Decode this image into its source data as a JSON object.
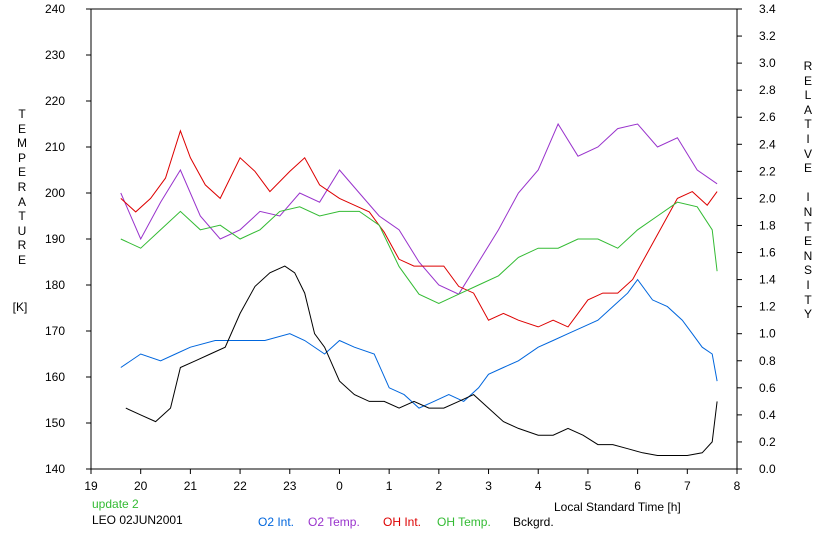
{
  "chart_data": {
    "type": "line",
    "ylabel_left": "TEMPERATURE",
    "ylabel_left_unit": "[K]",
    "ylabel_right": "RELATIVE INTENSITY",
    "xlabel": "Local Standard Time [h]",
    "xlim": [
      19,
      8
    ],
    "ylim_left": [
      140,
      240
    ],
    "ylim_right": [
      0.0,
      3.4
    ],
    "x_ticks": [
      "19",
      "20",
      "21",
      "22",
      "23",
      "0",
      "1",
      "2",
      "3",
      "4",
      "5",
      "6",
      "7",
      "8"
    ],
    "y_ticks_left": [
      "240",
      "230",
      "220",
      "210",
      "200",
      "190",
      "180",
      "170",
      "160",
      "150",
      "140"
    ],
    "y_ticks_right": [
      "3.4",
      "3.2",
      "3.0",
      "2.8",
      "2.6",
      "2.4",
      "2.2",
      "2.0",
      "1.8",
      "1.6",
      "1.4",
      "1.2",
      "1.0",
      "0.8",
      "0.6",
      "0.4",
      "0.2",
      "0.0"
    ],
    "grid": false,
    "legend_position": "bottom",
    "series": [
      {
        "name": "O2 Int.",
        "color": "#0066dd",
        "axis": "right",
        "points": [
          [
            19.6,
            0.75
          ],
          [
            20.0,
            0.85
          ],
          [
            20.4,
            0.8
          ],
          [
            20.7,
            0.85
          ],
          [
            21.0,
            0.9
          ],
          [
            21.5,
            0.95
          ],
          [
            22.0,
            0.95
          ],
          [
            22.5,
            0.95
          ],
          [
            23.0,
            1.0
          ],
          [
            23.3,
            0.95
          ],
          [
            23.7,
            0.85
          ],
          [
            0.0,
            0.95
          ],
          [
            0.3,
            0.9
          ],
          [
            0.7,
            0.85
          ],
          [
            1.0,
            0.6
          ],
          [
            1.3,
            0.55
          ],
          [
            1.6,
            0.45
          ],
          [
            1.9,
            0.5
          ],
          [
            2.2,
            0.55
          ],
          [
            2.5,
            0.5
          ],
          [
            2.8,
            0.6
          ],
          [
            3.0,
            0.7
          ],
          [
            3.3,
            0.75
          ],
          [
            3.6,
            0.8
          ],
          [
            4.0,
            0.9
          ],
          [
            4.3,
            0.95
          ],
          [
            4.6,
            1.0
          ],
          [
            4.9,
            1.05
          ],
          [
            5.2,
            1.1
          ],
          [
            5.5,
            1.2
          ],
          [
            5.8,
            1.3
          ],
          [
            6.0,
            1.4
          ],
          [
            6.3,
            1.25
          ],
          [
            6.6,
            1.2
          ],
          [
            6.9,
            1.1
          ],
          [
            7.1,
            1.0
          ],
          [
            7.3,
            0.9
          ],
          [
            7.5,
            0.85
          ],
          [
            7.6,
            0.65
          ]
        ]
      },
      {
        "name": "O2 Temp.",
        "color": "#9933cc",
        "axis": "left",
        "points": [
          [
            19.6,
            200
          ],
          [
            20.0,
            190
          ],
          [
            20.4,
            198
          ],
          [
            20.8,
            205
          ],
          [
            21.2,
            195
          ],
          [
            21.6,
            190
          ],
          [
            22.0,
            192
          ],
          [
            22.4,
            196
          ],
          [
            22.8,
            195
          ],
          [
            23.2,
            200
          ],
          [
            23.6,
            198
          ],
          [
            0.0,
            205
          ],
          [
            0.4,
            200
          ],
          [
            0.8,
            195
          ],
          [
            1.2,
            192
          ],
          [
            1.6,
            185
          ],
          [
            2.0,
            180
          ],
          [
            2.4,
            178
          ],
          [
            2.8,
            185
          ],
          [
            3.2,
            192
          ],
          [
            3.6,
            200
          ],
          [
            4.0,
            205
          ],
          [
            4.4,
            215
          ],
          [
            4.8,
            208
          ],
          [
            5.2,
            210
          ],
          [
            5.6,
            214
          ],
          [
            6.0,
            215
          ],
          [
            6.4,
            210
          ],
          [
            6.8,
            212
          ],
          [
            7.2,
            205
          ],
          [
            7.6,
            202
          ]
        ]
      },
      {
        "name": "OH Int.",
        "color": "#dd0000",
        "axis": "right",
        "points": [
          [
            19.6,
            2.0
          ],
          [
            19.9,
            1.9
          ],
          [
            20.2,
            2.0
          ],
          [
            20.5,
            2.15
          ],
          [
            20.8,
            2.5
          ],
          [
            21.0,
            2.3
          ],
          [
            21.3,
            2.1
          ],
          [
            21.6,
            2.0
          ],
          [
            22.0,
            2.3
          ],
          [
            22.3,
            2.2
          ],
          [
            22.6,
            2.05
          ],
          [
            23.0,
            2.2
          ],
          [
            23.3,
            2.3
          ],
          [
            23.6,
            2.1
          ],
          [
            0.0,
            2.0
          ],
          [
            0.3,
            1.95
          ],
          [
            0.6,
            1.9
          ],
          [
            0.9,
            1.75
          ],
          [
            1.2,
            1.55
          ],
          [
            1.5,
            1.5
          ],
          [
            1.8,
            1.5
          ],
          [
            2.1,
            1.5
          ],
          [
            2.4,
            1.35
          ],
          [
            2.7,
            1.3
          ],
          [
            3.0,
            1.1
          ],
          [
            3.3,
            1.15
          ],
          [
            3.6,
            1.1
          ],
          [
            4.0,
            1.05
          ],
          [
            4.3,
            1.1
          ],
          [
            4.6,
            1.05
          ],
          [
            4.8,
            1.15
          ],
          [
            5.0,
            1.25
          ],
          [
            5.3,
            1.3
          ],
          [
            5.6,
            1.3
          ],
          [
            5.9,
            1.4
          ],
          [
            6.2,
            1.6
          ],
          [
            6.5,
            1.8
          ],
          [
            6.8,
            2.0
          ],
          [
            7.1,
            2.05
          ],
          [
            7.4,
            1.95
          ],
          [
            7.6,
            2.05
          ]
        ]
      },
      {
        "name": "OH Temp.",
        "color": "#33bb33",
        "axis": "left",
        "points": [
          [
            19.6,
            190
          ],
          [
            20.0,
            188
          ],
          [
            20.4,
            192
          ],
          [
            20.8,
            196
          ],
          [
            21.2,
            192
          ],
          [
            21.6,
            193
          ],
          [
            22.0,
            190
          ],
          [
            22.4,
            192
          ],
          [
            22.8,
            196
          ],
          [
            23.2,
            197
          ],
          [
            23.6,
            195
          ],
          [
            0.0,
            196
          ],
          [
            0.4,
            196
          ],
          [
            0.8,
            193
          ],
          [
            1.2,
            184
          ],
          [
            1.6,
            178
          ],
          [
            2.0,
            176
          ],
          [
            2.4,
            178
          ],
          [
            2.8,
            180
          ],
          [
            3.2,
            182
          ],
          [
            3.6,
            186
          ],
          [
            4.0,
            188
          ],
          [
            4.4,
            188
          ],
          [
            4.8,
            190
          ],
          [
            5.2,
            190
          ],
          [
            5.6,
            188
          ],
          [
            6.0,
            192
          ],
          [
            6.4,
            195
          ],
          [
            6.8,
            198
          ],
          [
            7.2,
            197
          ],
          [
            7.5,
            192
          ],
          [
            7.6,
            183
          ]
        ]
      },
      {
        "name": "Bckgrd.",
        "color": "#000000",
        "axis": "right",
        "points": [
          [
            19.7,
            0.45
          ],
          [
            20.0,
            0.4
          ],
          [
            20.3,
            0.35
          ],
          [
            20.6,
            0.45
          ],
          [
            20.8,
            0.75
          ],
          [
            21.1,
            0.8
          ],
          [
            21.4,
            0.85
          ],
          [
            21.7,
            0.9
          ],
          [
            22.0,
            1.15
          ],
          [
            22.3,
            1.35
          ],
          [
            22.6,
            1.45
          ],
          [
            22.9,
            1.5
          ],
          [
            23.1,
            1.45
          ],
          [
            23.3,
            1.3
          ],
          [
            23.5,
            1.0
          ],
          [
            23.7,
            0.9
          ],
          [
            0.0,
            0.65
          ],
          [
            0.3,
            0.55
          ],
          [
            0.6,
            0.5
          ],
          [
            0.9,
            0.5
          ],
          [
            1.2,
            0.45
          ],
          [
            1.5,
            0.5
          ],
          [
            1.8,
            0.45
          ],
          [
            2.1,
            0.45
          ],
          [
            2.4,
            0.5
          ],
          [
            2.7,
            0.55
          ],
          [
            3.0,
            0.45
          ],
          [
            3.3,
            0.35
          ],
          [
            3.6,
            0.3
          ],
          [
            4.0,
            0.25
          ],
          [
            4.3,
            0.25
          ],
          [
            4.6,
            0.3
          ],
          [
            4.9,
            0.25
          ],
          [
            5.2,
            0.18
          ],
          [
            5.5,
            0.18
          ],
          [
            5.8,
            0.15
          ],
          [
            6.1,
            0.12
          ],
          [
            6.4,
            0.1
          ],
          [
            6.7,
            0.1
          ],
          [
            7.0,
            0.1
          ],
          [
            7.3,
            0.12
          ],
          [
            7.5,
            0.2
          ],
          [
            7.6,
            0.5
          ]
        ]
      }
    ]
  },
  "footer": {
    "update_label": "update 2",
    "station_label": "LEO 02JUN2001",
    "update_color": "#33bb33"
  }
}
